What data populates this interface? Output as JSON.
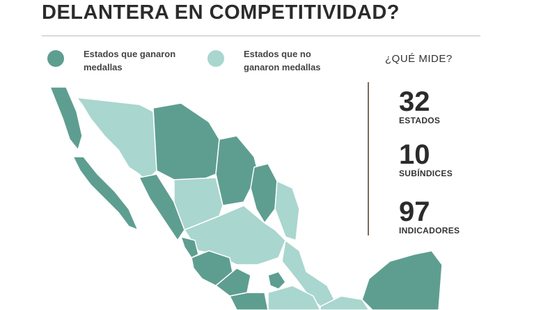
{
  "header": {
    "title": "DELANTERA EN COMPETITIVIDAD?"
  },
  "legend": [
    {
      "label": "Estados que ganaron medallas",
      "color": "#5e9e91"
    },
    {
      "label": "Estados que no ganaron medallas",
      "color": "#a9d6ce"
    }
  ],
  "info": {
    "title": "¿QUÉ MIDE?",
    "stats": [
      {
        "value": "32",
        "label": "ESTADOS"
      },
      {
        "value": "10",
        "label": "SUBÍNDICES"
      },
      {
        "value": "97",
        "label": "INDICADORES"
      }
    ]
  }
}
